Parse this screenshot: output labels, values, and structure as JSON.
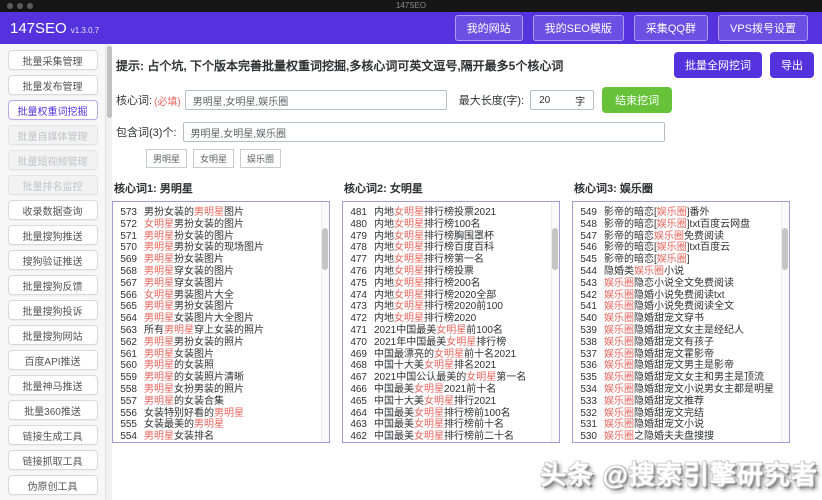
{
  "window": {
    "title": "147SEO"
  },
  "header": {
    "brand": "147SEO",
    "version": "v1.3.0.7",
    "nav": [
      "我的网站",
      "我的SEO模版",
      "采集QQ群",
      "VPS拨号设置"
    ]
  },
  "sidebar": {
    "items": [
      {
        "label": "批量采集管理",
        "state": "normal"
      },
      {
        "label": "批量发布管理",
        "state": "normal"
      },
      {
        "label": "批量权重词挖掘",
        "state": "active"
      },
      {
        "label": "批量自媒体管理",
        "state": "disabled"
      },
      {
        "label": "批量短视频管理",
        "state": "disabled"
      },
      {
        "label": "批量排名监控",
        "state": "disabled"
      },
      {
        "label": "收录数据查询",
        "state": "normal"
      },
      {
        "label": "批量搜狗推送",
        "state": "normal"
      },
      {
        "label": "搜狗验证推送",
        "state": "normal"
      },
      {
        "label": "批量搜狗反馈",
        "state": "normal"
      },
      {
        "label": "批量搜狗投诉",
        "state": "normal"
      },
      {
        "label": "批量搜狗网站",
        "state": "normal"
      },
      {
        "label": "百度API推送",
        "state": "normal"
      },
      {
        "label": "批量神马推送",
        "state": "normal"
      },
      {
        "label": "批量360推送",
        "state": "normal"
      },
      {
        "label": "链接生成工具",
        "state": "normal"
      },
      {
        "label": "链接抓取工具",
        "state": "normal"
      },
      {
        "label": "伪原创工具",
        "state": "normal"
      }
    ]
  },
  "main": {
    "hint": "提示: 占个坑, 下个版本完善批量权重词挖掘,多核心词可英文逗号,隔开最多5个核心词",
    "actions": {
      "mine_all": "批量全网挖词",
      "export": "导出"
    },
    "form": {
      "core_label": "核心词:",
      "required": "(必填)",
      "core_value": "男明星,女明星,娱乐圈",
      "max_len_label": "最大长度(字):",
      "max_len_value": "20",
      "max_len_unit": "字",
      "stop_button": "结束挖词",
      "include_label": "包含词(3)个:",
      "include_value": "男明星,女明星,娱乐圈",
      "tags": [
        "男明星",
        "女明星",
        "娱乐圈"
      ]
    },
    "highlight_keywords": [
      "男明星",
      "女明星",
      "娱乐圈"
    ],
    "columns": [
      {
        "title": "核心词1: 男明星",
        "items": [
          [
            573,
            "男扮女装的男明星图片"
          ],
          [
            572,
            "女明星男扮女装的图片"
          ],
          [
            571,
            "男明星扮女装的图片"
          ],
          [
            570,
            "男明星男扮女装的现场图片"
          ],
          [
            569,
            "男明星扮女装图片"
          ],
          [
            568,
            "男明星穿女装的图片"
          ],
          [
            567,
            "男明星穿女装图片"
          ],
          [
            566,
            "女明星男装图片大全"
          ],
          [
            565,
            "男明星男扮女装图片"
          ],
          [
            564,
            "男明星女装图片大全图片"
          ],
          [
            563,
            "所有男明星穿上女装的照片"
          ],
          [
            562,
            "男明星男扮女装的照片"
          ],
          [
            561,
            "男明星女装图片"
          ],
          [
            560,
            "男明星的女装照"
          ],
          [
            559,
            "男明星的女装照片清晰"
          ],
          [
            558,
            "男明星女扮男装的照片"
          ],
          [
            557,
            "男明星的女装合集"
          ],
          [
            556,
            "女装特别好看的男明星"
          ],
          [
            555,
            "女装最美的男明星"
          ],
          [
            554,
            "男明星女装排名"
          ]
        ]
      },
      {
        "title": "核心词2: 女明星",
        "items": [
          [
            481,
            "内地女明星排行榜投票2021"
          ],
          [
            480,
            "内地女明星排行榜100名"
          ],
          [
            479,
            "内地女明星排行榜胸围罩杯"
          ],
          [
            478,
            "内地女明星排行榜百度百科"
          ],
          [
            477,
            "内地女明星排行榜第一名"
          ],
          [
            476,
            "内地女明星排行榜投票"
          ],
          [
            475,
            "内地女明星排行榜200名"
          ],
          [
            474,
            "内地女明星排行榜2020全部"
          ],
          [
            473,
            "内地女明星排行榜2020前100"
          ],
          [
            472,
            "内地女明星排行榜2020"
          ],
          [
            471,
            "2021中国最美女明星前100名"
          ],
          [
            470,
            "2021年中国最美女明星排行榜"
          ],
          [
            469,
            "中国最漂亮的女明星前十名2021"
          ],
          [
            468,
            "中国十大美女明星排名2021"
          ],
          [
            467,
            "2021中国公认最美的女明星第一名"
          ],
          [
            466,
            "中国最美女明星2021前十名"
          ],
          [
            465,
            "中国十大美女明星排行2021"
          ],
          [
            464,
            "中国最美女明星排行榜前100名"
          ],
          [
            463,
            "中国最美女明星排行榜前十名"
          ],
          [
            462,
            "中国最美女明星排行榜前二十名"
          ]
        ]
      },
      {
        "title": "核心词3: 娱乐圈",
        "items": [
          [
            549,
            "影帝的暗恋[娱乐圈]番外"
          ],
          [
            548,
            "影帝的暗恋[娱乐圈]txt百度云网盘"
          ],
          [
            547,
            "影帝的暗恋娱乐圈免费阅读"
          ],
          [
            546,
            "影帝的暗恋[娱乐圈]txt百度云"
          ],
          [
            545,
            "影帝的暗恋[娱乐圈]"
          ],
          [
            544,
            "隐婚类娱乐圈小说"
          ],
          [
            543,
            "娱乐圈隐恋小说全文免费阅读"
          ],
          [
            542,
            "娱乐圈隐婚小说免费阅读txt"
          ],
          [
            541,
            "娱乐圈隐婚小说免费阅读全文"
          ],
          [
            540,
            "娱乐圈隐婚甜宠文穿书"
          ],
          [
            539,
            "娱乐圈隐婚甜宠文女主是经纪人"
          ],
          [
            538,
            "娱乐圈隐婚甜宠文有孩子"
          ],
          [
            537,
            "娱乐圈隐婚甜宠文霍影帝"
          ],
          [
            536,
            "娱乐圈隐婚甜宠文男主是影帝"
          ],
          [
            535,
            "娱乐圈隐婚甜宠文女主和男主是顶流"
          ],
          [
            534,
            "娱乐圈隐婚甜宠文小说男女主都是明星"
          ],
          [
            533,
            "娱乐圈隐婚甜宠文推荐"
          ],
          [
            532,
            "娱乐圈隐婚甜宠文完结"
          ],
          [
            531,
            "娱乐圈隐婚甜宠文小说"
          ],
          [
            530,
            "娱乐圈之隐婚夫夫盘搜搜"
          ]
        ]
      }
    ]
  },
  "watermark": "头条 @搜索引擎研究者",
  "colors": {
    "accent_purple": "#5433df",
    "success_green": "#67c23a",
    "highlight_red": "#e9655c",
    "list_border": "#a29bdc",
    "titlebar_bg": "#161616"
  }
}
